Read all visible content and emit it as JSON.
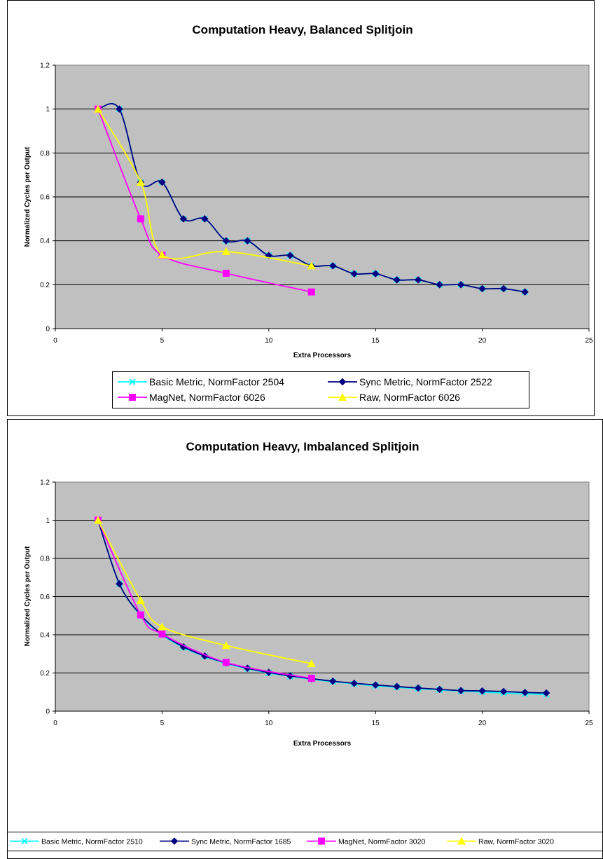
{
  "chart_data": [
    {
      "type": "line",
      "title": "Computation Heavy, Balanced Splitjoin",
      "xlabel": "Extra Processors",
      "ylabel": "Normalized Cycles per Output",
      "xlim": [
        0,
        25
      ],
      "ylim": [
        0,
        1.2
      ],
      "x_ticks": [
        "0",
        "5",
        "10",
        "15",
        "20",
        "25"
      ],
      "y_ticks": [
        "0",
        "0.2",
        "0.4",
        "0.6",
        "0.8",
        "1",
        "1.2"
      ],
      "grid": "horizontal",
      "legend_placement": "bottom",
      "series": [
        {
          "name": "Basic Metric, NormFactor 2504",
          "color": "#00ffff",
          "marker": "x",
          "x": [
            2,
            3,
            4,
            5,
            6,
            7,
            8,
            9,
            10,
            11,
            12,
            13,
            14,
            15,
            16,
            17,
            18,
            19,
            20,
            21,
            22
          ],
          "y": [
            1.0,
            1.0,
            0.667,
            0.667,
            0.5,
            0.5,
            0.4,
            0.4,
            0.333,
            0.333,
            0.286,
            0.286,
            0.25,
            0.25,
            0.222,
            0.222,
            0.2,
            0.2,
            0.182,
            0.182,
            0.167
          ]
        },
        {
          "name": "Sync Metric, NormFactor 2522",
          "color": "#000080",
          "marker": "diamond",
          "x": [
            2,
            3,
            4,
            5,
            6,
            7,
            8,
            9,
            10,
            11,
            12,
            13,
            14,
            15,
            16,
            17,
            18,
            19,
            20,
            21,
            22
          ],
          "y": [
            1.0,
            1.0,
            0.667,
            0.667,
            0.5,
            0.5,
            0.4,
            0.4,
            0.333,
            0.333,
            0.286,
            0.286,
            0.25,
            0.25,
            0.222,
            0.222,
            0.2,
            0.2,
            0.182,
            0.182,
            0.167
          ]
        },
        {
          "name": "MagNet, NormFactor 6026",
          "color": "#ff00ff",
          "marker": "square",
          "x": [
            2,
            4,
            5,
            8,
            12
          ],
          "y": [
            1.0,
            0.5,
            0.334,
            0.252,
            0.167
          ]
        },
        {
          "name": "Raw, NormFactor 6026",
          "color": "#ffff00",
          "marker": "triangle",
          "x": [
            2,
            4,
            5,
            8,
            12
          ],
          "y": [
            1.0,
            0.667,
            0.336,
            0.351,
            0.286
          ]
        }
      ]
    },
    {
      "type": "line",
      "title": "Computation Heavy, Imbalanced Splitjoin",
      "xlabel": "Extra Processors",
      "ylabel": "Normalized Cycles per Output",
      "xlim": [
        0,
        25
      ],
      "ylim": [
        0,
        1.2
      ],
      "x_ticks": [
        "0",
        "5",
        "10",
        "15",
        "20",
        "25"
      ],
      "y_ticks": [
        "0",
        "0.2",
        "0.4",
        "0.6",
        "0.8",
        "1",
        "1.2"
      ],
      "grid": "horizontal",
      "legend_placement": "bottom",
      "series": [
        {
          "name": "Basic Metric, NormFactor 2510",
          "color": "#00ffff",
          "marker": "x",
          "x": [
            2,
            3,
            4,
            5,
            6,
            7,
            8,
            9,
            10,
            11,
            12,
            13,
            14,
            15,
            16,
            17,
            18,
            19,
            20,
            21,
            22,
            23
          ],
          "y": [
            1.0,
            0.667,
            0.5,
            0.4,
            0.333,
            0.286,
            0.25,
            0.222,
            0.2,
            0.182,
            0.167,
            0.154,
            0.143,
            0.133,
            0.125,
            0.118,
            0.111,
            0.105,
            0.1,
            0.095,
            0.091,
            0.087
          ]
        },
        {
          "name": "Sync Metric, NormFactor 1685",
          "color": "#000080",
          "marker": "diamond",
          "x": [
            2,
            3,
            4,
            5,
            6,
            7,
            8,
            9,
            10,
            11,
            12,
            13,
            14,
            15,
            16,
            17,
            18,
            19,
            20,
            21,
            22,
            23
          ],
          "y": [
            1.0,
            0.667,
            0.504,
            0.404,
            0.337,
            0.289,
            0.253,
            0.225,
            0.203,
            0.185,
            0.17,
            0.157,
            0.146,
            0.137,
            0.129,
            0.121,
            0.114,
            0.108,
            0.106,
            0.103,
            0.098,
            0.095
          ]
        },
        {
          "name": "MagNet, NormFactor 3020",
          "color": "#ff00ff",
          "marker": "square",
          "x": [
            2,
            4,
            5,
            8,
            12
          ],
          "y": [
            1.0,
            0.504,
            0.404,
            0.255,
            0.172
          ]
        },
        {
          "name": "Raw, NormFactor 3020",
          "color": "#ffff00",
          "marker": "triangle",
          "x": [
            2,
            4,
            5,
            8,
            12
          ],
          "y": [
            1.0,
            0.58,
            0.442,
            0.344,
            0.249
          ]
        }
      ]
    }
  ]
}
